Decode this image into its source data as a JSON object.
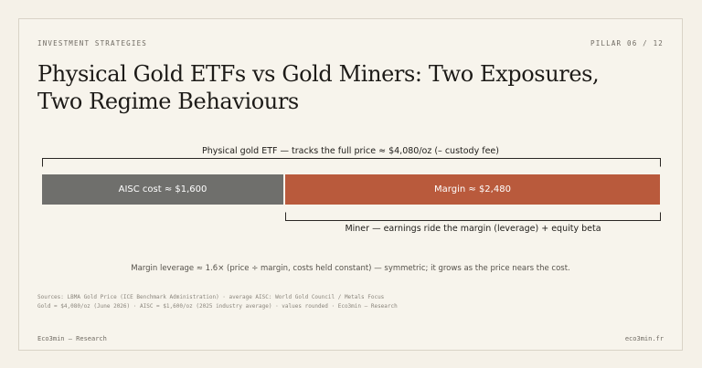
{
  "header": {
    "section": "INVESTMENT STRATEGIES",
    "pillar": "PILLAR 06 / 12"
  },
  "title": "Physical Gold ETFs vs Gold Miners: Two Exposures, Two Regime Behaviours",
  "diagram": {
    "etf_label": "Physical gold ETF — tracks the full price ≈ $4,080/oz (– custody fee)",
    "aisc_label": "AISC cost ≈ $1,600",
    "margin_label": "Margin ≈ $2,480",
    "miner_label": "Miner — earnings ride the margin (leverage) + equity beta",
    "values": {
      "gold_price": 4080,
      "aisc": 1600,
      "margin": 2480
    },
    "colors": {
      "aisc": "#6f6f6c",
      "margin": "#b95a3c"
    }
  },
  "note": "Margin leverage ≈ 1.6× (price ÷ margin, costs held constant) — symmetric; it grows as the price nears the cost.",
  "sources": {
    "line1": "Sources: LBMA Gold Price (ICE Benchmark Administration) · average AISC: World Gold Council / Metals Focus",
    "line2": "Gold = $4,080/oz (June 2026) · AISC = $1,600/oz (2025 industry average) · values rounded · Eco3min — Research"
  },
  "footer": {
    "left": "Eco3min — Research",
    "right": "eco3min.fr"
  }
}
